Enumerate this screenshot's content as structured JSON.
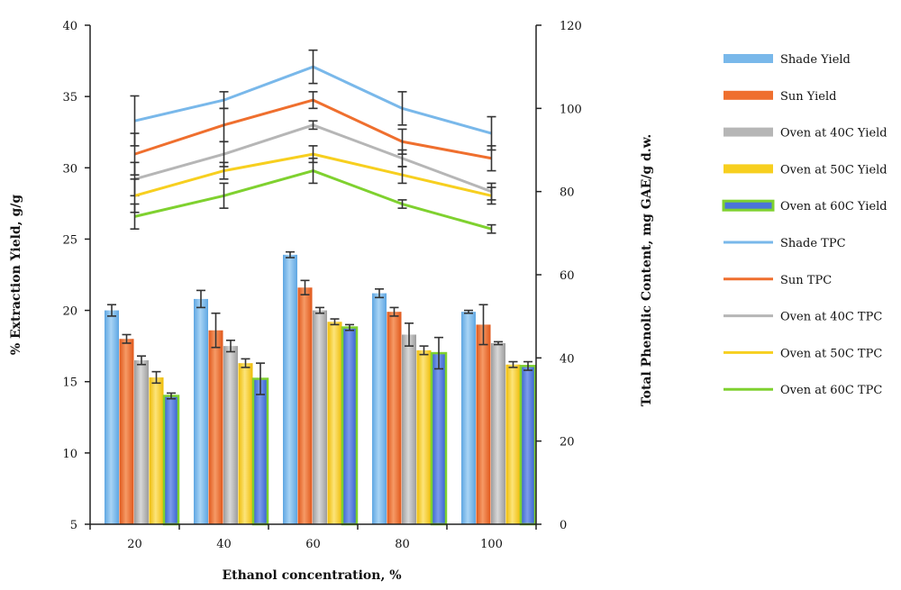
{
  "chart_data": {
    "type": "bar",
    "title": "",
    "xlabel": "Ethanol concentration, %",
    "ylabel": "% Extraction Yield, g/g",
    "y2label": "Total Phenolic Content, mg GAE/g d.w.",
    "categories": [
      "20",
      "40",
      "60",
      "80",
      "100"
    ],
    "ylim": [
      5,
      40
    ],
    "y_ticks": [
      5,
      10,
      15,
      20,
      25,
      30,
      35,
      40
    ],
    "y2lim": [
      0,
      120
    ],
    "y2_ticks": [
      0,
      20,
      40,
      60,
      80,
      100,
      120
    ],
    "grid": false,
    "legend_position": "right",
    "bar_series": [
      {
        "name": "Shade Yield",
        "color": "#79b8ea",
        "values": [
          20.0,
          20.8,
          23.9,
          21.2,
          19.9
        ],
        "errors": [
          0.4,
          0.6,
          0.2,
          0.3,
          0.1
        ]
      },
      {
        "name": "Sun Yield",
        "color": "#ef6f2e",
        "values": [
          18.0,
          18.6,
          21.6,
          19.9,
          19.0
        ],
        "errors": [
          0.3,
          1.2,
          0.5,
          0.3,
          1.4
        ]
      },
      {
        "name": "Oven at 40C Yield",
        "color": "#b6b6b6",
        "values": [
          16.5,
          17.5,
          20.0,
          18.3,
          17.7
        ],
        "errors": [
          0.3,
          0.4,
          0.2,
          0.8,
          0.1
        ]
      },
      {
        "name": "Oven at 50C Yield",
        "color": "#f7cf1f",
        "values": [
          15.3,
          16.3,
          19.2,
          17.2,
          16.2
        ],
        "errors": [
          0.4,
          0.3,
          0.2,
          0.3,
          0.2
        ]
      },
      {
        "name": "Oven at 60C Yield",
        "color": "#4a74d8",
        "border": "#7fd12f",
        "values": [
          14.0,
          15.2,
          18.8,
          17.0,
          16.1
        ],
        "errors": [
          0.2,
          1.1,
          0.2,
          1.1,
          0.3
        ]
      }
    ],
    "line_series": [
      {
        "name": "Shade TPC",
        "color": "#79b8ea",
        "values": [
          97,
          102,
          110,
          100,
          94
        ],
        "errors": [
          6,
          2,
          4,
          4,
          4
        ]
      },
      {
        "name": "Sun TPC",
        "color": "#ef6f2e",
        "values": [
          89,
          96,
          102,
          92,
          88
        ],
        "errors": [
          5,
          4,
          2,
          3,
          3
        ]
      },
      {
        "name": "Oven at 40C TPC",
        "color": "#b6b6b6",
        "values": [
          83,
          89,
          96,
          88,
          80
        ],
        "errors": [
          4,
          3,
          1,
          2,
          2
        ]
      },
      {
        "name": "Oven at 50C TPC",
        "color": "#f7cf1f",
        "values": [
          79,
          85,
          89,
          84,
          79
        ],
        "errors": [
          4,
          2,
          2,
          2,
          2
        ]
      },
      {
        "name": "Oven at 60C TPC",
        "color": "#7fd12f",
        "values": [
          74,
          79,
          85,
          77,
          71
        ],
        "errors": [
          3,
          3,
          3,
          1,
          1
        ]
      }
    ]
  }
}
